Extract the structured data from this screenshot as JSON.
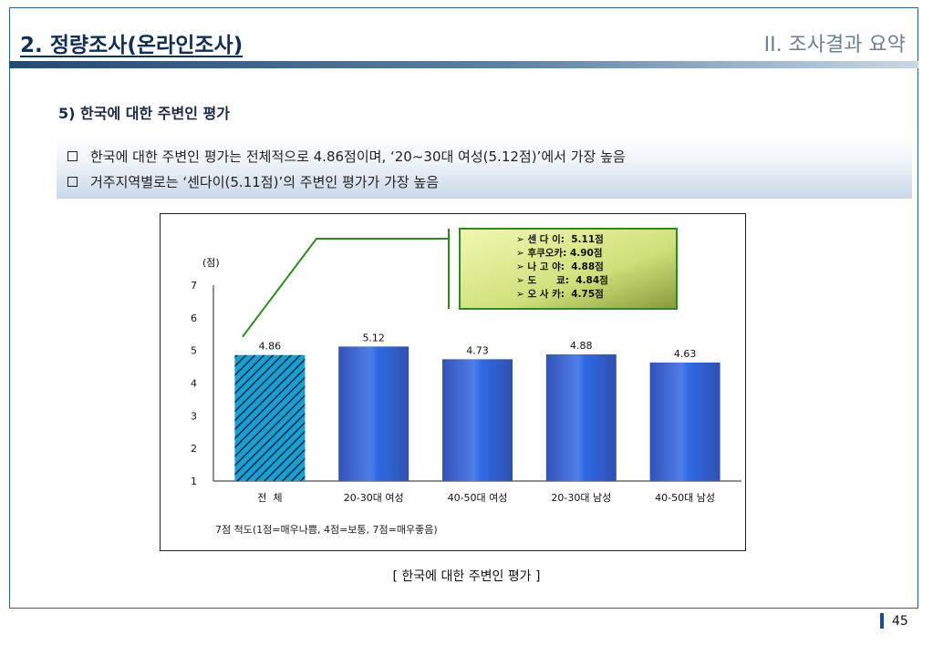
{
  "header": {
    "title": "2. 정량조사(온라인조사)",
    "section": "II. 조사결과 요약"
  },
  "subheading": "5) 한국에 대한 주변인 평가",
  "bullets": [
    "한국에 대한 주변인 평가는 전체적으로 4.86점이며, ‘20~30대 여성(5.12점)’에서 가장 높음",
    "거주지역별로는 ‘센다이(5.11점)’의 주변인 평가가 가장 높음"
  ],
  "chart_data": {
    "type": "bar",
    "categories": [
      "전  체",
      "20-30대 여성",
      "40-50대 여성",
      "20-30대 남성",
      "40-50대 남성"
    ],
    "values": [
      4.86,
      5.12,
      4.73,
      4.88,
      4.63
    ],
    "value_labels": [
      "4.86",
      "5.12",
      "4.73",
      "4.88",
      "4.63"
    ],
    "ylabel": "(점)",
    "ylim": [
      1,
      7
    ],
    "yticks": [
      "1",
      "2",
      "3",
      "4",
      "5",
      "6",
      "7"
    ],
    "highlight_index": 0,
    "note": "7점 척도(1점=매우나쁨, 4점=보통, 7점=매우좋음)",
    "callout": [
      "➢ 센 다 이:  5.11점",
      "➢ 후쿠오카: 4.90점",
      "➢ 나 고 야:  4.88점",
      "➢ 도      쿄:  4.84점",
      "➢ 오 사 카:  4.75점"
    ],
    "colors": {
      "bar": "#3a5fc8",
      "highlight": "#1aa6d8",
      "callout_border": "#2e8a1e"
    }
  },
  "caption": "[ 한국에 대한 주변인 평가 ]",
  "page_number": "45"
}
